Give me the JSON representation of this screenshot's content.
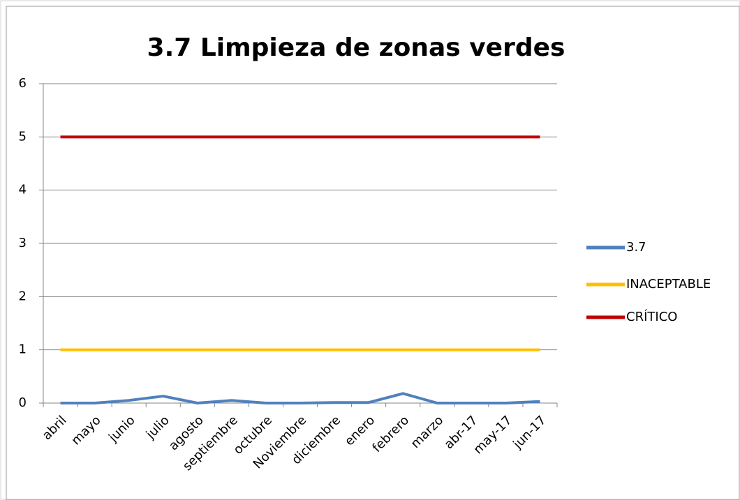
{
  "chart_data": {
    "type": "line",
    "title": "3.7 Limpieza de zonas verdes",
    "categories": [
      "abril",
      "mayo",
      "junio",
      "julio",
      "agosto",
      "septiembre",
      "octubre",
      "Noviembre",
      "diciembre",
      "enero",
      "febrero",
      "marzo",
      "abr-17",
      "may-17",
      "jun-17"
    ],
    "series": [
      {
        "name": "3.7",
        "color": "#4f81bd",
        "values": [
          0,
          0,
          0.05,
          0.13,
          0,
          0.05,
          0,
          0,
          0.01,
          0.01,
          0.18,
          0,
          0,
          0,
          0.03
        ]
      },
      {
        "name": "INACEPTABLE",
        "color": "#ffc000",
        "values": [
          1,
          1,
          1,
          1,
          1,
          1,
          1,
          1,
          1,
          1,
          1,
          1,
          1,
          1,
          1
        ]
      },
      {
        "name": "CRÍTICO",
        "color": "#c00000",
        "values": [
          5,
          5,
          5,
          5,
          5,
          5,
          5,
          5,
          5,
          5,
          5,
          5,
          5,
          5,
          5
        ]
      }
    ],
    "ylim": [
      0,
      6
    ],
    "yticks": [
      0,
      1,
      2,
      3,
      4,
      5,
      6
    ],
    "grid": true,
    "legend": "right"
  }
}
